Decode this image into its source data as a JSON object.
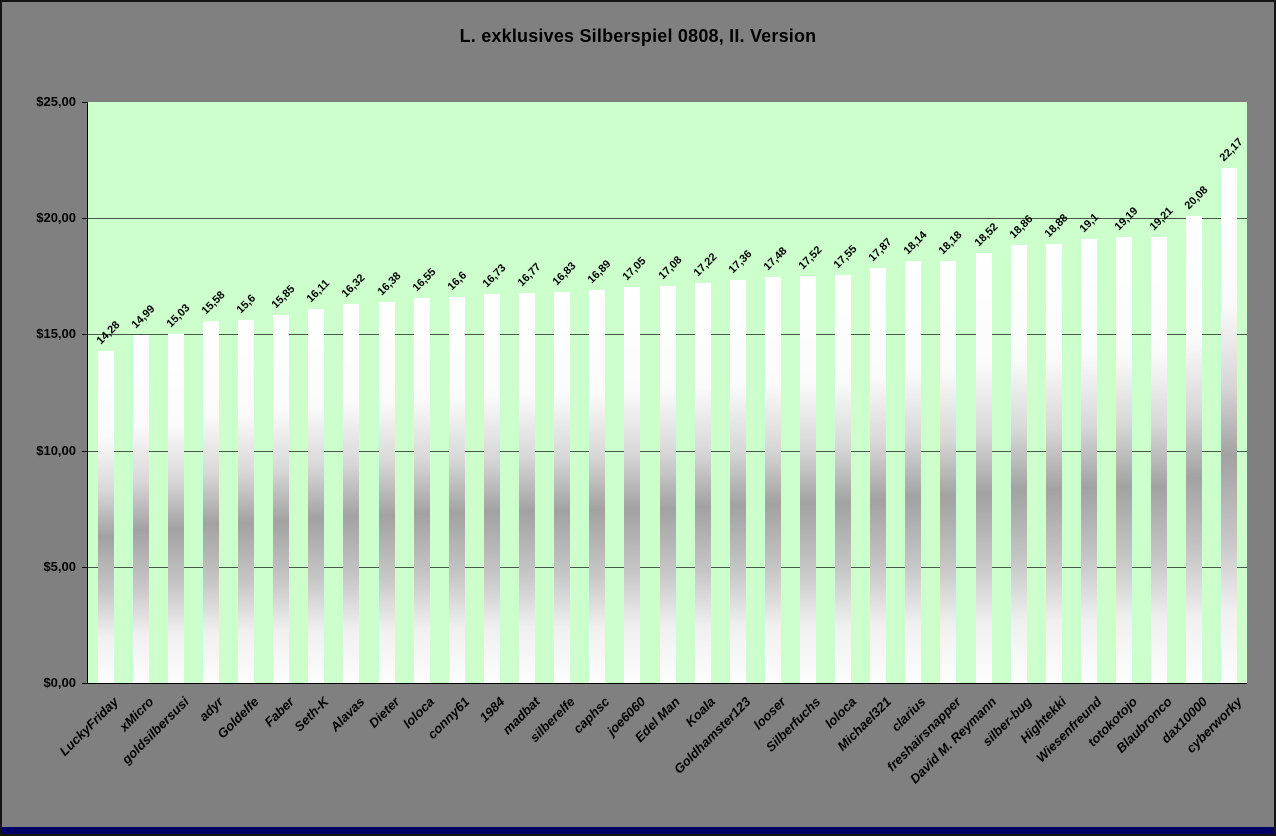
{
  "window": {
    "background": "#808080",
    "bottom_edge_color": "#000066"
  },
  "chart_data": {
    "type": "bar",
    "title": "L. exklusives Silberspiel 0808, II. Version",
    "plot_bg": "#ccffcc",
    "grid": true,
    "legend": "none",
    "ylim": [
      0,
      25
    ],
    "y_step": 5,
    "y_ticks": [
      "$25,00",
      "$20,00",
      "$15,00",
      "$10,00",
      "$5,00",
      "$0,00"
    ],
    "categories": [
      "LuckyFriday",
      "xMicro",
      "goldsilbersusi",
      "adyr",
      "Goldelfe",
      "Faber",
      "Seth-K",
      "Alavas",
      "Dieter",
      "loloca",
      "conny61",
      "1984",
      "madbat",
      "silberelfe",
      "caphsc",
      "joe6060",
      "Edel Man",
      "Koala",
      "Goldhamster123",
      "looser",
      "Silberfuchs",
      "loloca",
      "Michael321",
      "clarius",
      "freshairsnapper",
      "David M. Reymann",
      "silber-bug",
      "Hightekki",
      "Wiesenfreund",
      "totokotojo",
      "Blaubronco",
      "dax10000",
      "cyberworky"
    ],
    "values": [
      14.28,
      14.99,
      15.03,
      15.58,
      15.6,
      15.85,
      16.11,
      16.32,
      16.38,
      16.55,
      16.6,
      16.73,
      16.77,
      16.83,
      16.89,
      17.05,
      17.08,
      17.22,
      17.36,
      17.48,
      17.52,
      17.55,
      17.87,
      18.14,
      18.18,
      18.52,
      18.86,
      18.88,
      19.1,
      19.19,
      19.21,
      20.08,
      22.17
    ],
    "value_labels": [
      "14,28",
      "14,99",
      "15,03",
      "15,58",
      "15,6",
      "15,85",
      "16,11",
      "16,32",
      "16,38",
      "16,55",
      "16,6",
      "16,73",
      "16,77",
      "16,83",
      "16,89",
      "17,05",
      "17,08",
      "17,22",
      "17,36",
      "17,48",
      "17,52",
      "17,55",
      "17,87",
      "18,14",
      "18,18",
      "18,52",
      "18,86",
      "18,88",
      "19,1",
      "19,19",
      "19,21",
      "20,08",
      "22,17"
    ],
    "colors": {
      "bar_light": "#ffffff",
      "bar_dark": "#a2a2a2",
      "gridline": "#000000",
      "text": "#000000"
    }
  }
}
